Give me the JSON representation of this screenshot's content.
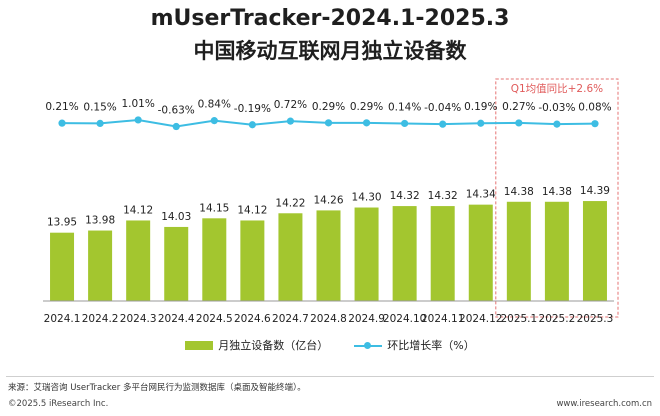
{
  "title_line1": "mUserTracker-2024.1-2025.3",
  "title_line2": "中国移动互联网月独立设备数",
  "annotation": "Q1均值同比+2.6%",
  "legend": {
    "bar_label": "月独立设备数（亿台）",
    "line_label": "环比增长率（%）"
  },
  "source": "来源：艾瑞咨询 UserTracker 多平台网民行为监测数据库（桌面及智能终端）。",
  "footer_left": "©2025.5 iResearch Inc.",
  "footer_right": "www.iresearch.com.cn",
  "colors": {
    "bar": "#a3c62f",
    "line": "#3dbde3",
    "highlight_box": "#e57373",
    "annotation_text": "#e05a5a"
  },
  "chart_data": {
    "type": "bar",
    "categories": [
      "2024.1",
      "2024.2",
      "2024.3",
      "2024.4",
      "2024.5",
      "2024.6",
      "2024.7",
      "2024.8",
      "2024.9",
      "2024.10",
      "2024.11",
      "2024.12",
      "2025.1",
      "2025.2",
      "2025.3"
    ],
    "series": [
      {
        "name": "月独立设备数（亿台）",
        "type": "bar",
        "values": [
          13.95,
          13.98,
          14.12,
          14.03,
          14.15,
          14.12,
          14.22,
          14.26,
          14.3,
          14.32,
          14.32,
          14.34,
          14.38,
          14.38,
          14.39
        ],
        "labels": [
          "13.95",
          "13.98",
          "14.12",
          "14.03",
          "14.15",
          "14.12",
          "14.22",
          "14.26",
          "14.30",
          "14.32",
          "14.32",
          "14.34",
          "14.38",
          "14.38",
          "14.39"
        ]
      },
      {
        "name": "环比增长率（%）",
        "type": "line",
        "values": [
          0.21,
          0.15,
          1.01,
          -0.63,
          0.84,
          -0.19,
          0.72,
          0.29,
          0.29,
          0.14,
          -0.04,
          0.19,
          0.27,
          -0.03,
          0.08
        ],
        "labels": [
          "0.21%",
          "0.15%",
          "1.01%",
          "-0.63%",
          "0.84%",
          "-0.19%",
          "0.72%",
          "0.29%",
          "0.29%",
          "0.14%",
          "-0.04%",
          "0.19%",
          "0.27%",
          "-0.03%",
          "0.08%"
        ]
      }
    ],
    "highlight_categories": [
      "2025.1",
      "2025.2",
      "2025.3"
    ],
    "grid": false,
    "legend_position": "bottom"
  }
}
